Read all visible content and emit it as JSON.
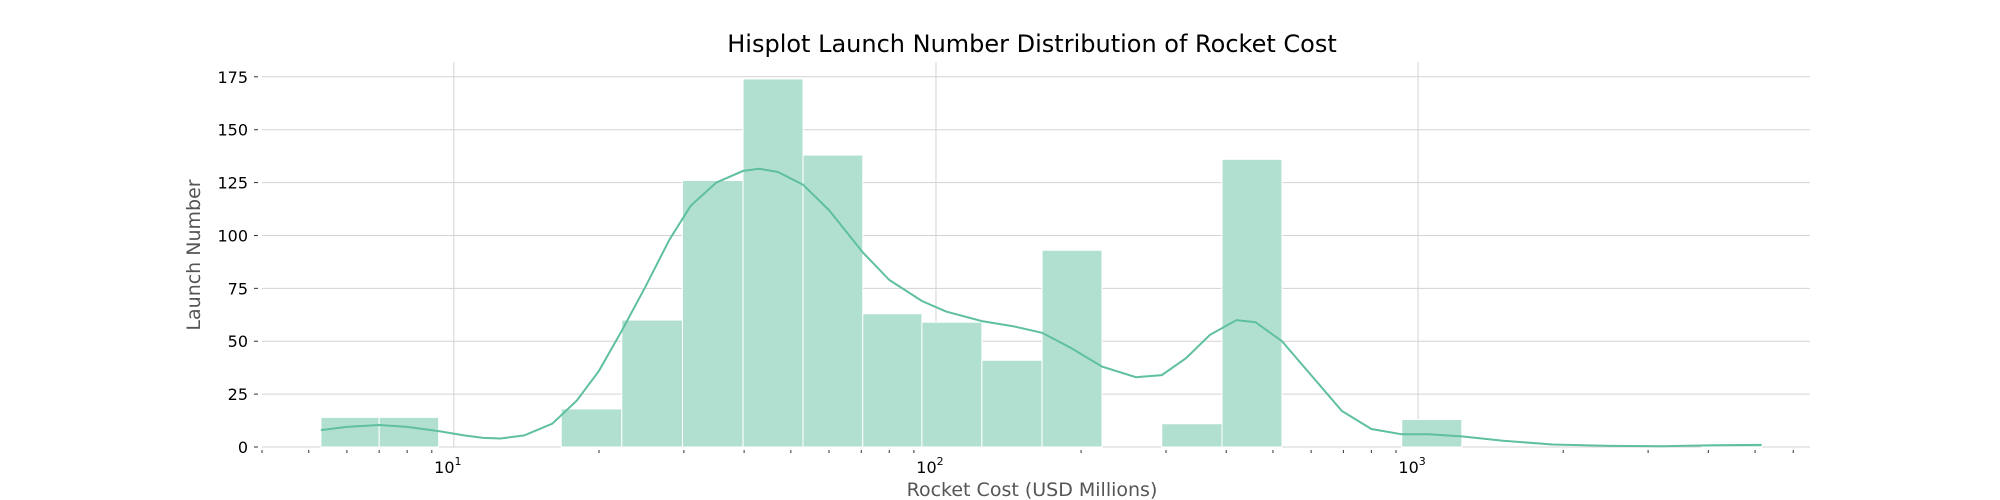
{
  "chart_data": {
    "type": "bar",
    "title": "Hisplot Launch Number Distribution of Rocket Cost",
    "xlabel": "Rocket Cost (USD Millions)",
    "ylabel": "Launch Number",
    "x_scale": "log",
    "xlim": [
      4,
      6500
    ],
    "ylim": [
      0,
      182
    ],
    "y_ticks": [
      0,
      25,
      50,
      75,
      100,
      125,
      150,
      175
    ],
    "x_ticks": [
      {
        "value": 10,
        "base": "10",
        "exp": "1"
      },
      {
        "value": 100,
        "base": "10",
        "exp": "2"
      },
      {
        "value": 1000,
        "base": "10",
        "exp": "3"
      }
    ],
    "grid": true,
    "colors": {
      "bar": "#b2e0d0",
      "bar_edge": "#ffffff",
      "kde": "#5fc09c",
      "grid": "#d3d3d3"
    },
    "bins": [
      {
        "x0": 5.3,
        "x1": 7.0,
        "count": 14
      },
      {
        "x0": 7.0,
        "x1": 9.3,
        "count": 14
      },
      {
        "x0": 9.3,
        "x1": 12.5,
        "count": 0
      },
      {
        "x0": 12.5,
        "x1": 16.7,
        "count": 0
      },
      {
        "x0": 16.7,
        "x1": 22.3,
        "count": 18
      },
      {
        "x0": 22.3,
        "x1": 29.8,
        "count": 60
      },
      {
        "x0": 29.8,
        "x1": 39.8,
        "count": 126
      },
      {
        "x0": 39.8,
        "x1": 53.0,
        "count": 174
      },
      {
        "x0": 53.0,
        "x1": 70.5,
        "count": 138
      },
      {
        "x0": 70.5,
        "x1": 93.5,
        "count": 63
      },
      {
        "x0": 93.5,
        "x1": 124.5,
        "count": 59
      },
      {
        "x0": 124.5,
        "x1": 166.0,
        "count": 41
      },
      {
        "x0": 166.0,
        "x1": 221.0,
        "count": 93
      },
      {
        "x0": 221.0,
        "x1": 294.0,
        "count": 0
      },
      {
        "x0": 294.0,
        "x1": 392.0,
        "count": 11
      },
      {
        "x0": 392.0,
        "x1": 522.0,
        "count": 136
      },
      {
        "x0": 522.0,
        "x1": 695.0,
        "count": 0
      },
      {
        "x0": 695.0,
        "x1": 925.0,
        "count": 0
      },
      {
        "x0": 925.0,
        "x1": 1232.0,
        "count": 13
      },
      {
        "x0": 1232.0,
        "x1": 1640.0,
        "count": 0
      },
      {
        "x0": 1640.0,
        "x1": 2185.0,
        "count": 0
      },
      {
        "x0": 2185.0,
        "x1": 2910.0,
        "count": 0
      },
      {
        "x0": 2910.0,
        "x1": 3875.0,
        "count": 0
      },
      {
        "x0": 3875.0,
        "x1": 5160.0,
        "count": 1
      }
    ],
    "kde": [
      [
        5.3,
        8
      ],
      [
        6.0,
        9.5
      ],
      [
        7.0,
        10.4
      ],
      [
        8.0,
        9.5
      ],
      [
        9.3,
        7.5
      ],
      [
        10.5,
        5.5
      ],
      [
        11.5,
        4.3
      ],
      [
        12.5,
        4.0
      ],
      [
        14.0,
        5.5
      ],
      [
        16.0,
        11
      ],
      [
        18.0,
        22
      ],
      [
        20.0,
        36
      ],
      [
        22.3,
        55
      ],
      [
        25.0,
        76
      ],
      [
        28.0,
        98
      ],
      [
        31.0,
        114
      ],
      [
        35.0,
        125
      ],
      [
        39.8,
        130.5
      ],
      [
        43.0,
        131.5
      ],
      [
        47.0,
        130
      ],
      [
        53.0,
        124
      ],
      [
        60.0,
        112
      ],
      [
        70.5,
        92
      ],
      [
        80.0,
        79
      ],
      [
        93.5,
        69
      ],
      [
        105.0,
        64
      ],
      [
        124.5,
        59.5
      ],
      [
        145.0,
        57
      ],
      [
        166.0,
        54
      ],
      [
        190.0,
        47
      ],
      [
        221.0,
        38
      ],
      [
        260.0,
        33
      ],
      [
        294.0,
        34
      ],
      [
        330.0,
        42
      ],
      [
        370.0,
        53
      ],
      [
        420.0,
        60
      ],
      [
        460.0,
        59
      ],
      [
        522.0,
        50
      ],
      [
        600.0,
        34
      ],
      [
        695.0,
        17
      ],
      [
        800.0,
        8.5
      ],
      [
        925.0,
        6
      ],
      [
        1050.0,
        6
      ],
      [
        1232.0,
        5
      ],
      [
        1500.0,
        3
      ],
      [
        1900.0,
        1.2
      ],
      [
        2500.0,
        0.5
      ],
      [
        3200.0,
        0.4
      ],
      [
        4100.0,
        0.8
      ],
      [
        5160.0,
        1.0
      ]
    ]
  }
}
